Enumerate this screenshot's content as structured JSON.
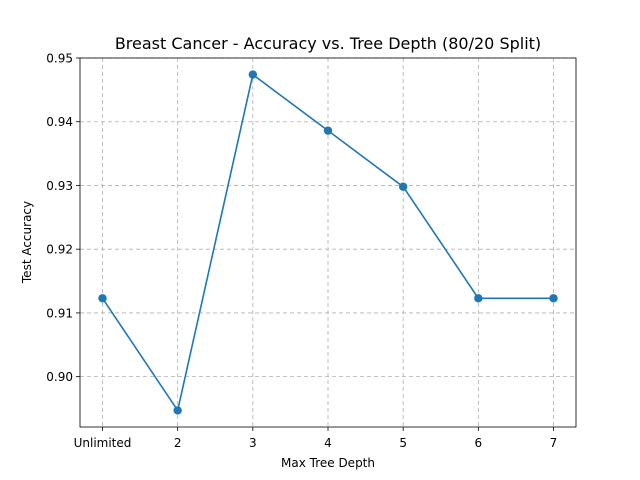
{
  "chart_data": {
    "type": "line",
    "title": "Breast Cancer - Accuracy vs. Tree Depth (80/20 Split)",
    "xlabel": "Max Tree Depth",
    "ylabel": "Test Accuracy",
    "categories": [
      "Unlimited",
      "2",
      "3",
      "4",
      "5",
      "6",
      "7"
    ],
    "series": [
      {
        "values": [
          0.9123,
          0.8947,
          0.9474,
          0.9386,
          0.9298,
          0.9123,
          0.9123
        ],
        "color": "#1f77b4",
        "marker": "circle"
      }
    ],
    "yticks": [
      0.9,
      0.91,
      0.92,
      0.93,
      0.94,
      0.95
    ],
    "ytick_labels": [
      "0.90",
      "0.91",
      "0.92",
      "0.93",
      "0.94",
      "0.95"
    ],
    "ylim": [
      0.8921,
      0.95
    ],
    "grid": true,
    "grid_style": "dashed"
  }
}
